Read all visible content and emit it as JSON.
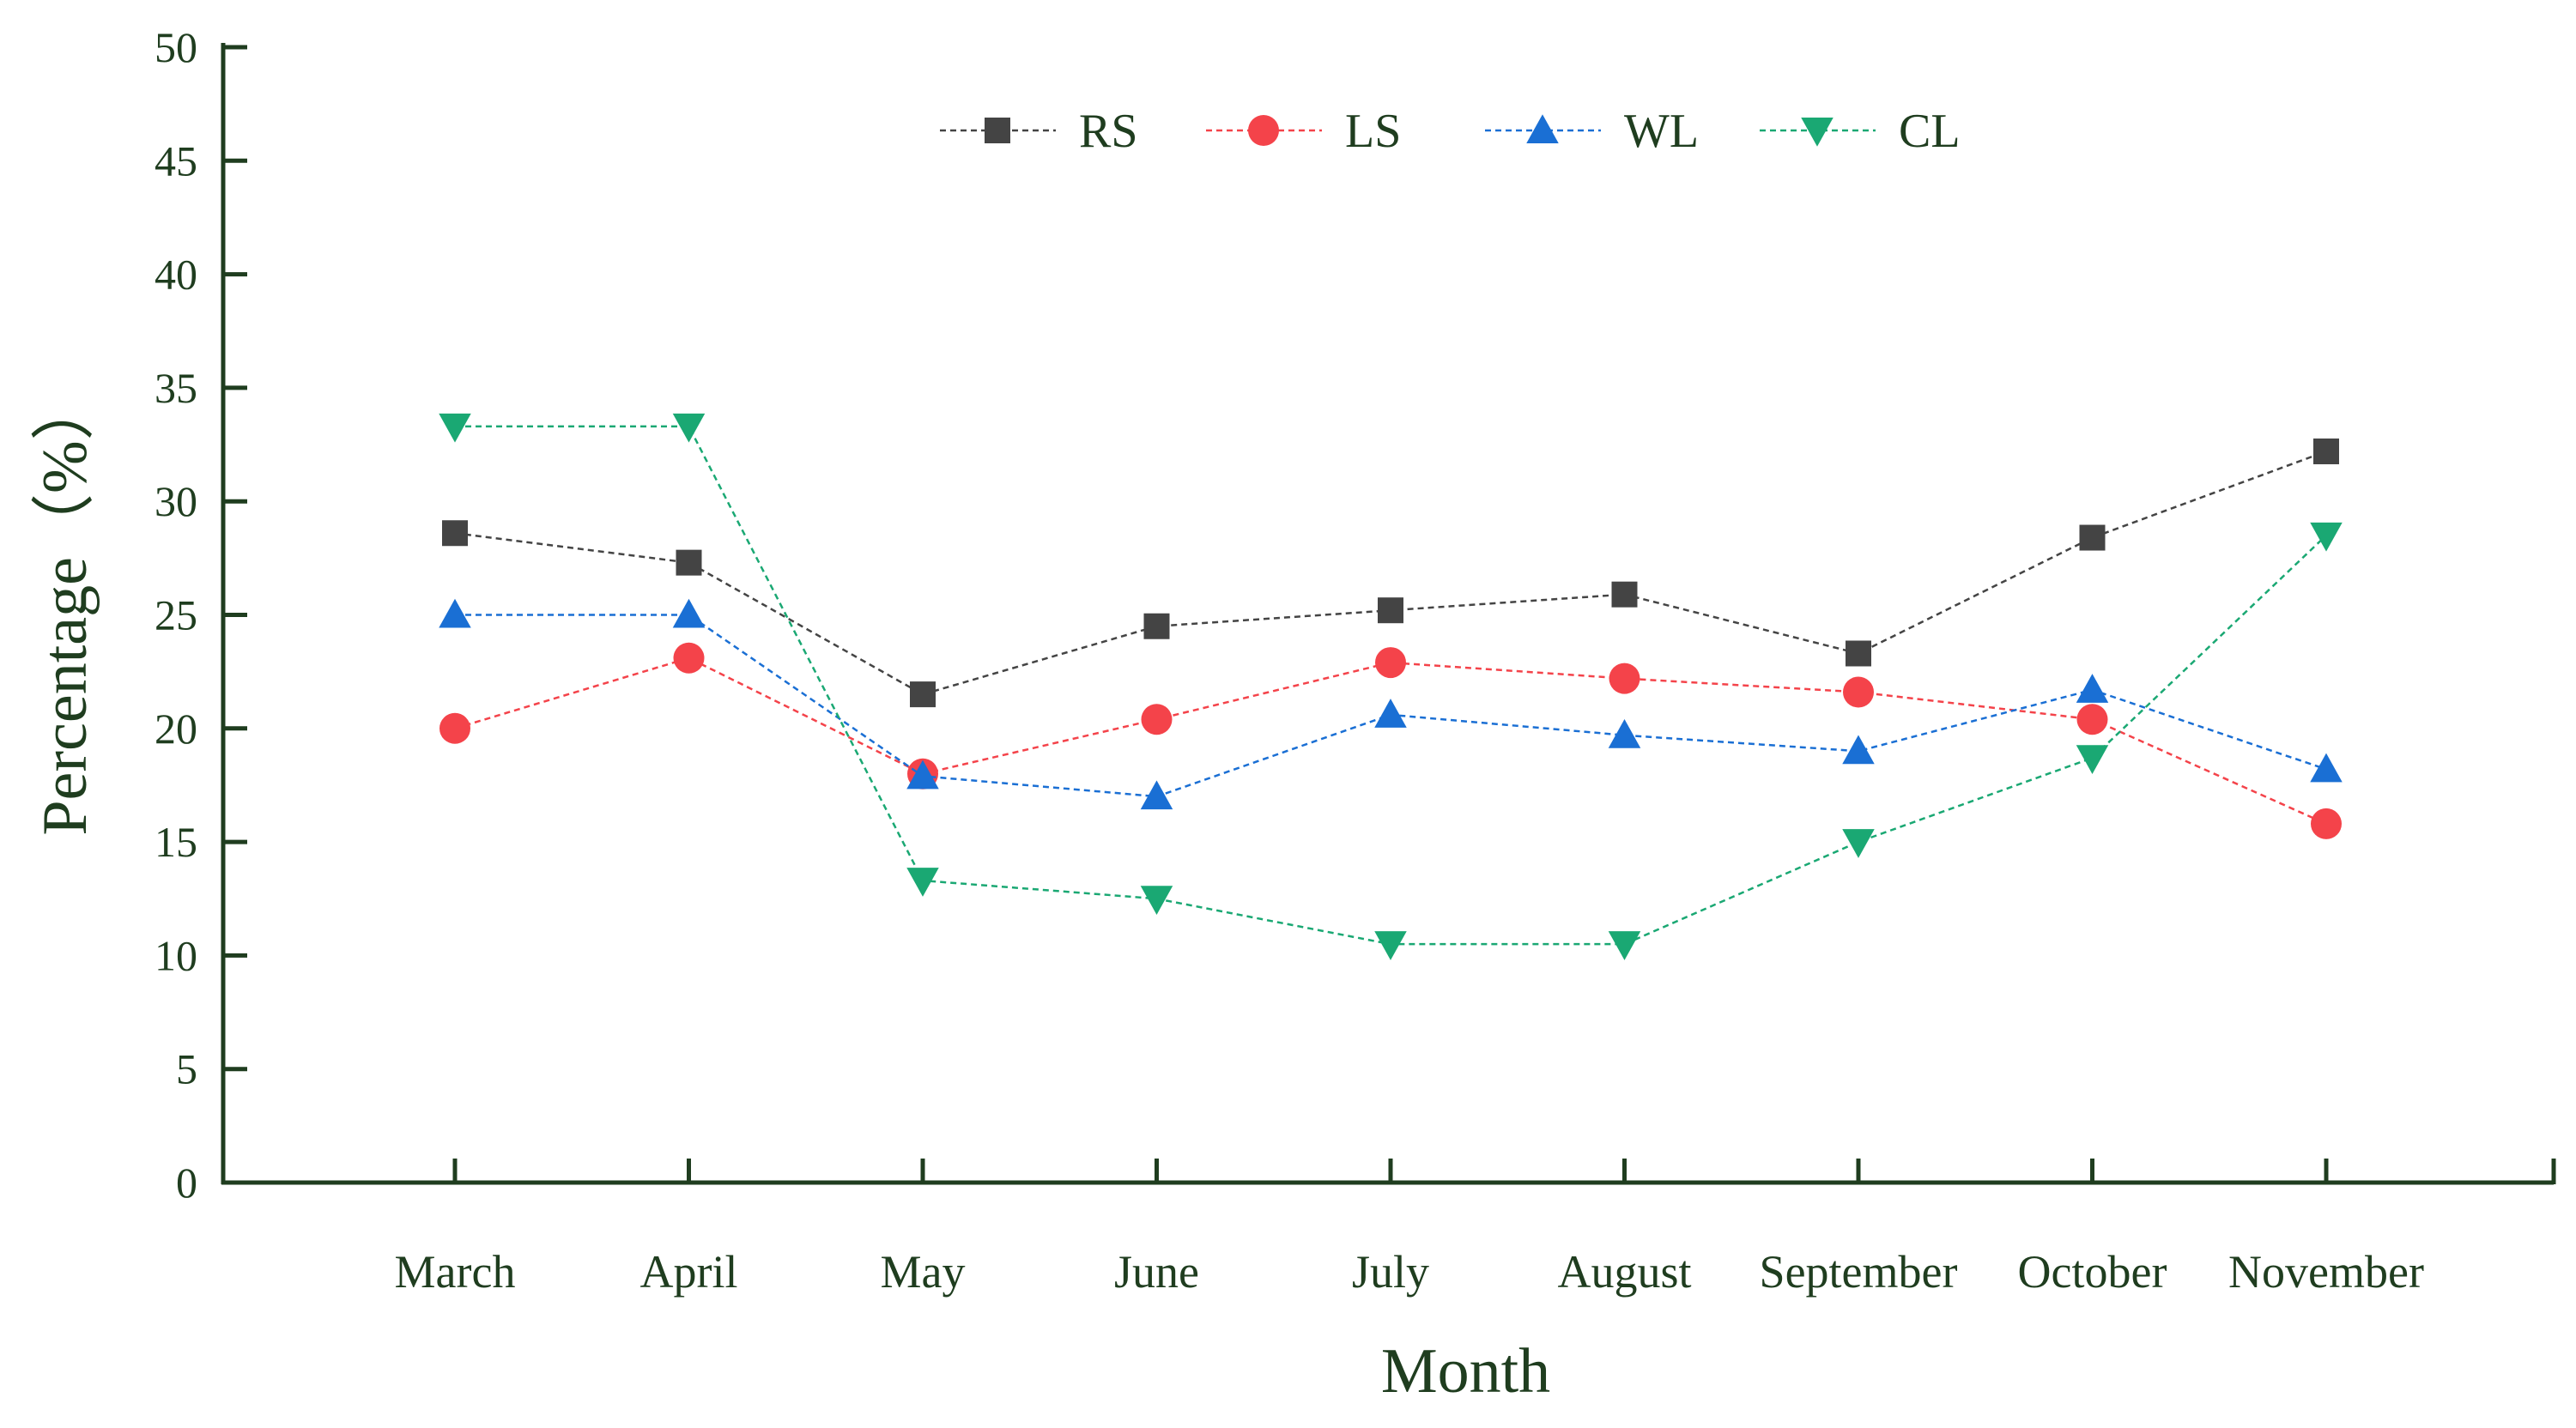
{
  "chart_data": {
    "type": "line",
    "title": "",
    "xlabel": "Month",
    "ylabel": "Percentage（%）",
    "ylim": [
      0,
      50
    ],
    "yticks": [
      0,
      5,
      10,
      15,
      20,
      25,
      30,
      35,
      40,
      45,
      50
    ],
    "categories": [
      "March",
      "April",
      "May",
      "June",
      "July",
      "August",
      "September",
      "October",
      "November"
    ],
    "legend_position": "top-center",
    "grid": false,
    "axis_color": "#1f3d1f",
    "series": [
      {
        "name": "RS",
        "marker": "square",
        "color": "#444444",
        "values": [
          28.6,
          27.3,
          21.5,
          24.5,
          25.2,
          25.9,
          23.3,
          28.4,
          32.2
        ]
      },
      {
        "name": "LS",
        "marker": "circle",
        "color": "#f4434a",
        "values": [
          20.0,
          23.1,
          18.0,
          20.4,
          22.9,
          22.2,
          21.6,
          20.4,
          15.8
        ]
      },
      {
        "name": "WL",
        "marker": "triangle-up",
        "color": "#1a6fd4",
        "values": [
          25.0,
          25.0,
          17.9,
          17.0,
          20.6,
          19.7,
          19.0,
          21.7,
          18.2
        ]
      },
      {
        "name": "CL",
        "marker": "triangle-down",
        "color": "#1aa873",
        "values": [
          33.3,
          33.3,
          13.3,
          12.5,
          10.5,
          10.5,
          15.0,
          18.7,
          28.5
        ]
      }
    ]
  }
}
